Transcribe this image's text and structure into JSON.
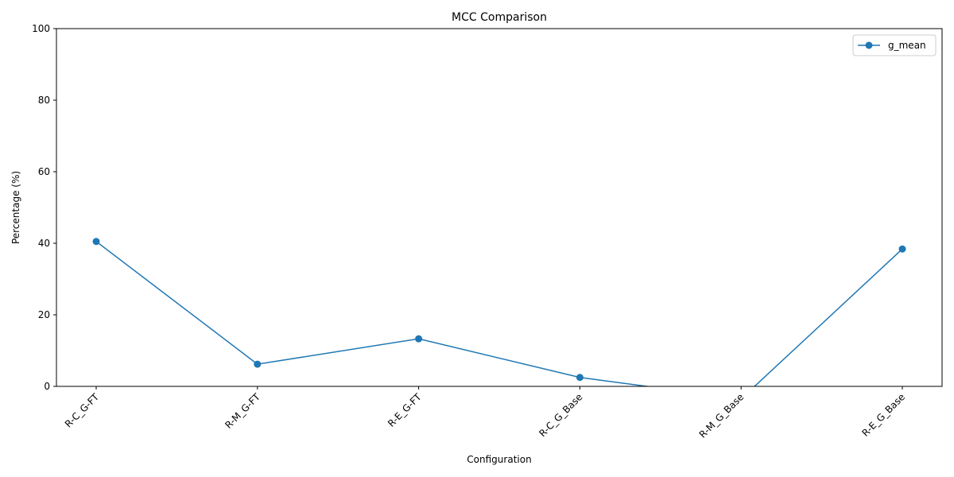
{
  "chart_data": {
    "type": "line",
    "title": "MCC Comparison",
    "xlabel": "Configuration",
    "ylabel": "Percentage (%)",
    "ylim": [
      0,
      100
    ],
    "yticks": [
      0,
      20,
      40,
      60,
      80,
      100
    ],
    "grid": false,
    "legend_position": "top-right",
    "categories": [
      "R-C_G-FT",
      "R-M_G-FT",
      "R-E_G-FT",
      "R-C_G_Base",
      "R-M_G_Base",
      "R-E_G_Base"
    ],
    "series": [
      {
        "name": "g_mean",
        "color": "#1f77b4",
        "marker": "circle",
        "values": [
          40.5,
          6.2,
          13.3,
          2.5,
          -3.5,
          38.4
        ]
      }
    ]
  }
}
